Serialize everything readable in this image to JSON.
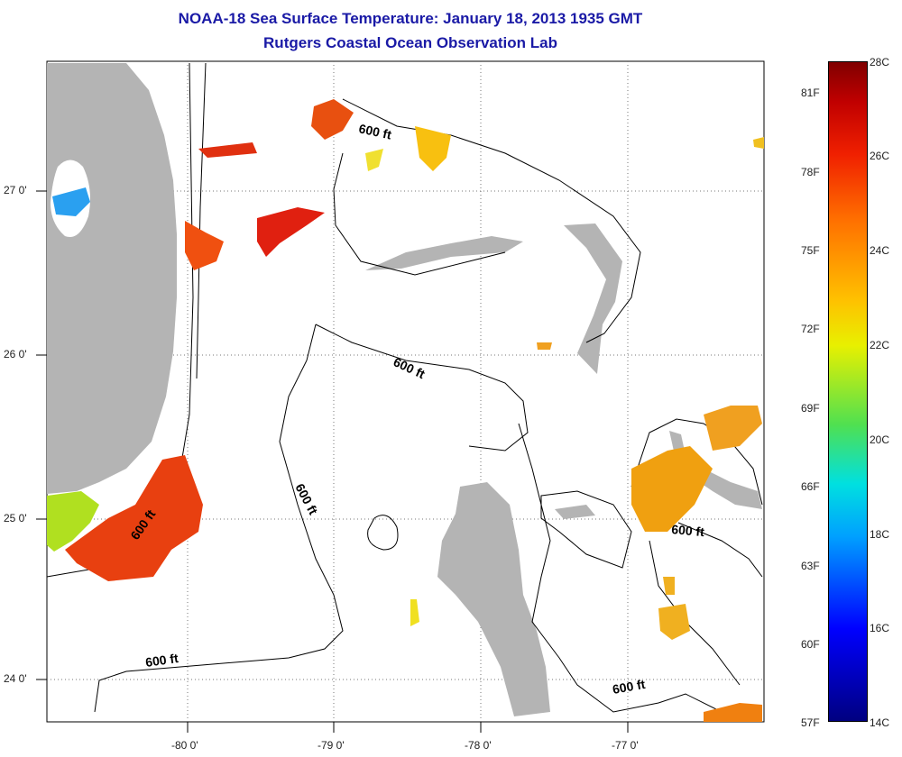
{
  "title": "NOAA-18 Sea Surface Temperature:  January 18, 2013 1935 GMT",
  "subtitle": "Rutgers Coastal Ocean Observation Lab",
  "lat_labels": [
    "27 0'",
    "26 0'",
    "25 0'",
    "24 0'"
  ],
  "lon_labels": [
    "-80 0'",
    "-79 0'",
    "-78 0'",
    "-77 0'"
  ],
  "isobath_labels": [
    "600 ft",
    "600 ft",
    "600 ft",
    "600 ft",
    "600 ft",
    "600 ft"
  ],
  "colorbar": {
    "fahrenheit": [
      "81F",
      "78F",
      "75F",
      "72F",
      "69F",
      "66F",
      "63F",
      "60F",
      "57F"
    ],
    "celsius": [
      "28C",
      "26C",
      "24C",
      "22C",
      "20C",
      "18C",
      "16C",
      "14C"
    ]
  },
  "colors": {
    "land": "#b4b4b4",
    "title": "#1a1aa6",
    "warm": "#e83010",
    "orange": "#f08a10",
    "yellow": "#e8d000"
  }
}
